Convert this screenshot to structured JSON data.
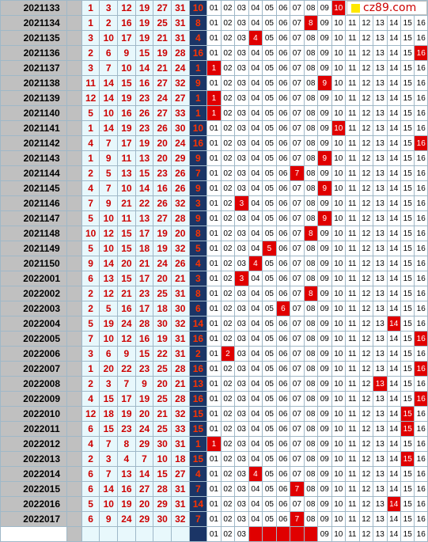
{
  "logo": {
    "text": "cz89.com",
    "icon": "yellow-square-icon"
  },
  "colors": {
    "period_bg": "#c0c0c0",
    "red_num": "#cc0000",
    "blue_bg": "#1b3566",
    "blue_num": "#ff3300",
    "hit_bg": "#e00000"
  },
  "rows": [
    {
      "period": "2021133",
      "reds": [
        "1",
        "3",
        "12",
        "19",
        "27",
        "31"
      ],
      "blue": "10",
      "hits": [
        10
      ]
    },
    {
      "period": "2021134",
      "reds": [
        "1",
        "2",
        "16",
        "19",
        "25",
        "31"
      ],
      "blue": "8",
      "hits": [
        8
      ]
    },
    {
      "period": "2021135",
      "reds": [
        "3",
        "10",
        "17",
        "19",
        "21",
        "31"
      ],
      "blue": "4",
      "hits": [
        4
      ]
    },
    {
      "period": "2021136",
      "reds": [
        "2",
        "6",
        "9",
        "15",
        "19",
        "28"
      ],
      "blue": "16",
      "hits": [
        16
      ]
    },
    {
      "period": "2021137",
      "reds": [
        "3",
        "7",
        "10",
        "14",
        "21",
        "24"
      ],
      "blue": "1",
      "hits": [
        1
      ]
    },
    {
      "period": "2021138",
      "reds": [
        "11",
        "14",
        "15",
        "16",
        "27",
        "32"
      ],
      "blue": "9",
      "hits": [
        9
      ]
    },
    {
      "period": "2021139",
      "reds": [
        "12",
        "14",
        "19",
        "23",
        "24",
        "27"
      ],
      "blue": "1",
      "hits": [
        1
      ]
    },
    {
      "period": "2021140",
      "reds": [
        "5",
        "10",
        "16",
        "26",
        "27",
        "33"
      ],
      "blue": "1",
      "hits": [
        1
      ]
    },
    {
      "period": "2021141",
      "reds": [
        "1",
        "14",
        "19",
        "23",
        "26",
        "30"
      ],
      "blue": "10",
      "hits": [
        10
      ]
    },
    {
      "period": "2021142",
      "reds": [
        "4",
        "7",
        "17",
        "19",
        "20",
        "24"
      ],
      "blue": "16",
      "hits": [
        16
      ]
    },
    {
      "period": "2021143",
      "reds": [
        "1",
        "9",
        "11",
        "13",
        "20",
        "29"
      ],
      "blue": "9",
      "hits": [
        9
      ]
    },
    {
      "period": "2021144",
      "reds": [
        "2",
        "5",
        "13",
        "15",
        "23",
        "26"
      ],
      "blue": "7",
      "hits": [
        7
      ]
    },
    {
      "period": "2021145",
      "reds": [
        "4",
        "7",
        "10",
        "14",
        "16",
        "26"
      ],
      "blue": "9",
      "hits": [
        9
      ]
    },
    {
      "period": "2021146",
      "reds": [
        "7",
        "9",
        "21",
        "22",
        "26",
        "32"
      ],
      "blue": "3",
      "hits": [
        3
      ]
    },
    {
      "period": "2021147",
      "reds": [
        "5",
        "10",
        "11",
        "13",
        "27",
        "28"
      ],
      "blue": "9",
      "hits": [
        9
      ]
    },
    {
      "period": "2021148",
      "reds": [
        "10",
        "12",
        "15",
        "17",
        "19",
        "20"
      ],
      "blue": "8",
      "hits": [
        8
      ]
    },
    {
      "period": "2021149",
      "reds": [
        "5",
        "10",
        "15",
        "18",
        "19",
        "32"
      ],
      "blue": "5",
      "hits": [
        5
      ]
    },
    {
      "period": "2021150",
      "reds": [
        "9",
        "14",
        "20",
        "21",
        "24",
        "26"
      ],
      "blue": "4",
      "hits": [
        4
      ]
    },
    {
      "period": "2022001",
      "reds": [
        "6",
        "13",
        "15",
        "17",
        "20",
        "21"
      ],
      "blue": "3",
      "hits": [
        3
      ]
    },
    {
      "period": "2022002",
      "reds": [
        "2",
        "12",
        "21",
        "23",
        "25",
        "31"
      ],
      "blue": "8",
      "hits": [
        8
      ]
    },
    {
      "period": "2022003",
      "reds": [
        "2",
        "5",
        "16",
        "17",
        "18",
        "30"
      ],
      "blue": "6",
      "hits": [
        6
      ]
    },
    {
      "period": "2022004",
      "reds": [
        "5",
        "19",
        "24",
        "28",
        "30",
        "32"
      ],
      "blue": "14",
      "hits": [
        14
      ]
    },
    {
      "period": "2022005",
      "reds": [
        "7",
        "10",
        "12",
        "16",
        "19",
        "31"
      ],
      "blue": "16",
      "hits": [
        16
      ]
    },
    {
      "period": "2022006",
      "reds": [
        "3",
        "6",
        "9",
        "15",
        "22",
        "31"
      ],
      "blue": "2",
      "hits": [
        2
      ]
    },
    {
      "period": "2022007",
      "reds": [
        "1",
        "20",
        "22",
        "23",
        "25",
        "28"
      ],
      "blue": "16",
      "hits": [
        16
      ]
    },
    {
      "period": "2022008",
      "reds": [
        "2",
        "3",
        "7",
        "9",
        "20",
        "21"
      ],
      "blue": "13",
      "hits": [
        13
      ]
    },
    {
      "period": "2022009",
      "reds": [
        "4",
        "15",
        "17",
        "19",
        "25",
        "28"
      ],
      "blue": "16",
      "hits": [
        16
      ]
    },
    {
      "period": "2022010",
      "reds": [
        "12",
        "18",
        "19",
        "20",
        "21",
        "32"
      ],
      "blue": "15",
      "hits": [
        15
      ]
    },
    {
      "period": "2022011",
      "reds": [
        "6",
        "15",
        "23",
        "24",
        "25",
        "33"
      ],
      "blue": "15",
      "hits": [
        15
      ]
    },
    {
      "period": "2022012",
      "reds": [
        "4",
        "7",
        "8",
        "29",
        "30",
        "31"
      ],
      "blue": "1",
      "hits": [
        1
      ]
    },
    {
      "period": "2022013",
      "reds": [
        "2",
        "3",
        "4",
        "7",
        "10",
        "18"
      ],
      "blue": "15",
      "hits": [
        15
      ]
    },
    {
      "period": "2022014",
      "reds": [
        "6",
        "7",
        "13",
        "14",
        "15",
        "27"
      ],
      "blue": "4",
      "hits": [
        4
      ]
    },
    {
      "period": "2022015",
      "reds": [
        "6",
        "14",
        "16",
        "27",
        "28",
        "31"
      ],
      "blue": "7",
      "hits": [
        7
      ]
    },
    {
      "period": "2022016",
      "reds": [
        "5",
        "10",
        "19",
        "20",
        "29",
        "31"
      ],
      "blue": "14",
      "hits": [
        14
      ]
    },
    {
      "period": "2022017",
      "reds": [
        "6",
        "9",
        "24",
        "29",
        "30",
        "32"
      ],
      "blue": "7",
      "hits": [
        7
      ]
    },
    {
      "period": "",
      "reds": [
        "",
        "",
        "",
        "",
        "",
        ""
      ],
      "blue": "",
      "hits": [
        4,
        5,
        6,
        7,
        8
      ]
    }
  ]
}
